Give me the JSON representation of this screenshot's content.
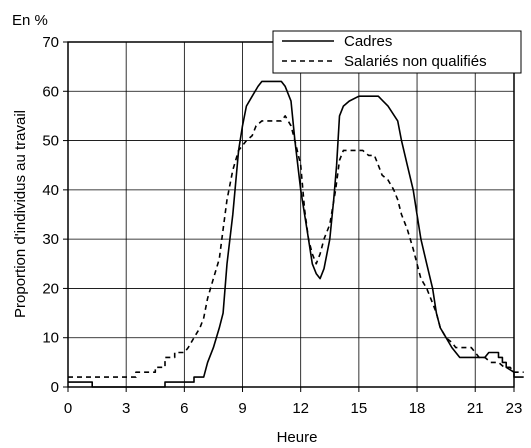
{
  "chart_data": {
    "type": "line",
    "unit_label": "En %",
    "xlabel": "Heure",
    "ylabel": "Proportion d'individus au travail",
    "xlim": [
      0,
      23
    ],
    "ylim": [
      0,
      70
    ],
    "xticks": [
      "0",
      "3",
      "6",
      "9",
      "12",
      "15",
      "18",
      "21",
      "23"
    ],
    "yticks": [
      "0",
      "10",
      "20",
      "30",
      "40",
      "50",
      "60",
      "70"
    ],
    "grid": true,
    "legend_position": "top-right",
    "series": [
      {
        "name": "Cadres",
        "style": "solid",
        "color": "#000000",
        "points": [
          [
            0,
            1
          ],
          [
            1.25,
            1
          ],
          [
            1.25,
            0
          ],
          [
            5,
            0
          ],
          [
            5,
            1
          ],
          [
            6.5,
            1
          ],
          [
            6.5,
            2
          ],
          [
            7,
            2
          ],
          [
            7.2,
            5
          ],
          [
            7.5,
            8
          ],
          [
            7.8,
            12
          ],
          [
            8,
            15
          ],
          [
            8.2,
            25
          ],
          [
            8.5,
            35
          ],
          [
            8.8,
            48
          ],
          [
            9,
            53
          ],
          [
            9.2,
            57
          ],
          [
            9.5,
            59
          ],
          [
            9.8,
            61
          ],
          [
            10,
            62
          ],
          [
            11,
            62
          ],
          [
            11.2,
            61
          ],
          [
            11.5,
            58
          ],
          [
            11.7,
            50
          ],
          [
            12,
            40
          ],
          [
            12.2,
            35
          ],
          [
            12.4,
            30
          ],
          [
            12.6,
            25
          ],
          [
            12.8,
            23
          ],
          [
            13,
            22
          ],
          [
            13.2,
            24
          ],
          [
            13.5,
            30
          ],
          [
            13.7,
            38
          ],
          [
            13.85,
            45
          ],
          [
            14,
            55
          ],
          [
            14.2,
            57
          ],
          [
            14.5,
            58
          ],
          [
            15,
            59
          ],
          [
            16,
            59
          ],
          [
            16.5,
            57
          ],
          [
            17,
            54
          ],
          [
            17.2,
            50
          ],
          [
            17.5,
            45
          ],
          [
            17.8,
            40
          ],
          [
            18,
            35
          ],
          [
            18.2,
            30
          ],
          [
            18.5,
            25
          ],
          [
            18.8,
            20
          ],
          [
            19,
            15
          ],
          [
            19.2,
            12
          ],
          [
            19.5,
            10
          ],
          [
            19.8,
            8
          ],
          [
            20,
            7
          ],
          [
            20.2,
            6
          ],
          [
            20.5,
            6
          ],
          [
            20.8,
            6
          ],
          [
            21,
            6
          ],
          [
            21.2,
            6
          ],
          [
            21.5,
            6
          ],
          [
            21.7,
            7
          ],
          [
            22.2,
            7
          ],
          [
            22.2,
            6
          ],
          [
            22.4,
            6
          ],
          [
            22.4,
            5
          ],
          [
            22.6,
            5
          ],
          [
            22.6,
            4
          ],
          [
            23,
            3
          ],
          [
            23,
            2
          ],
          [
            23.5,
            2
          ]
        ]
      },
      {
        "name": "Salariés non qualifiés",
        "style": "dashed",
        "color": "#000000",
        "points": [
          [
            0,
            2
          ],
          [
            3.5,
            2
          ],
          [
            3.5,
            3
          ],
          [
            4.5,
            3
          ],
          [
            4.5,
            4
          ],
          [
            5,
            4
          ],
          [
            5,
            6
          ],
          [
            5.5,
            6
          ],
          [
            5.5,
            7
          ],
          [
            6,
            7
          ],
          [
            6.2,
            8
          ],
          [
            6.5,
            10
          ],
          [
            6.8,
            12
          ],
          [
            7,
            14
          ],
          [
            7.2,
            18
          ],
          [
            7.5,
            22
          ],
          [
            7.8,
            26
          ],
          [
            8,
            32
          ],
          [
            8.2,
            38
          ],
          [
            8.5,
            44
          ],
          [
            8.8,
            48
          ],
          [
            9,
            49
          ],
          [
            9.2,
            50
          ],
          [
            9.5,
            51
          ],
          [
            9.7,
            53
          ],
          [
            10,
            54
          ],
          [
            11,
            54
          ],
          [
            11.2,
            55
          ],
          [
            11.5,
            53
          ],
          [
            11.7,
            50
          ],
          [
            12,
            45
          ],
          [
            12.2,
            36
          ],
          [
            12.4,
            30
          ],
          [
            12.6,
            27
          ],
          [
            12.8,
            25
          ],
          [
            13,
            27
          ],
          [
            13.2,
            30
          ],
          [
            13.5,
            33
          ],
          [
            13.8,
            40
          ],
          [
            14,
            46
          ],
          [
            14.2,
            48
          ],
          [
            15,
            48
          ],
          [
            15.2,
            48
          ],
          [
            15.5,
            47
          ],
          [
            15.8,
            47
          ],
          [
            16,
            45
          ],
          [
            16.2,
            43
          ],
          [
            16.5,
            42
          ],
          [
            16.8,
            40
          ],
          [
            17,
            38
          ],
          [
            17.2,
            35
          ],
          [
            17.5,
            32
          ],
          [
            17.8,
            28
          ],
          [
            18,
            25
          ],
          [
            18.2,
            22
          ],
          [
            18.5,
            20
          ],
          [
            18.8,
            17
          ],
          [
            19,
            15
          ],
          [
            19.2,
            12
          ],
          [
            19.5,
            10
          ],
          [
            19.8,
            9
          ],
          [
            20,
            8
          ],
          [
            20.2,
            8
          ],
          [
            20.5,
            8
          ],
          [
            20.8,
            8
          ],
          [
            21,
            7
          ],
          [
            21.2,
            6
          ],
          [
            21.5,
            6
          ],
          [
            21.8,
            5
          ],
          [
            22,
            5
          ],
          [
            22.2,
            5
          ],
          [
            22.5,
            4
          ],
          [
            22.8,
            4
          ],
          [
            23,
            3
          ],
          [
            23.5,
            3
          ]
        ]
      }
    ]
  }
}
